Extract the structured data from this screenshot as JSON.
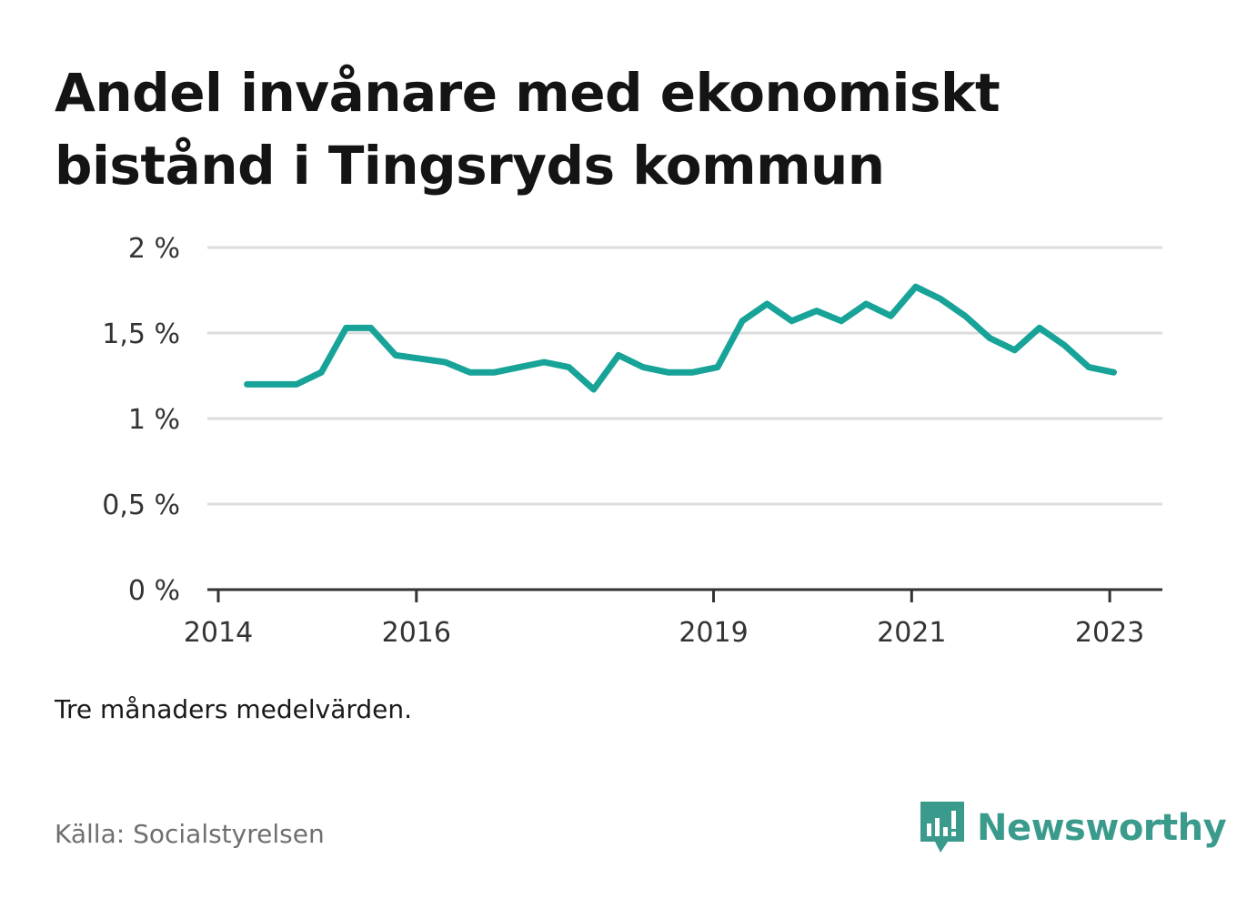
{
  "header": {
    "title": "Andel invånare med ekonomiskt bistånd i Tingsryds kommun"
  },
  "footer": {
    "note": "Tre månaders medelvärden.",
    "source": "Källa: Socialstyrelsen",
    "brand": "Newsworthy",
    "brand_color": "#3a9b8c"
  },
  "chart_data": {
    "type": "line",
    "title": "Andel invånare med ekonomiskt bistånd i Tingsryds kommun",
    "xlabel": "",
    "ylabel": "",
    "ylim": [
      0,
      2
    ],
    "xlim": [
      2014,
      2023.2
    ],
    "grid": true,
    "y_ticks": [
      {
        "value": 0,
        "label": "0 %"
      },
      {
        "value": 0.5,
        "label": "0,5 %"
      },
      {
        "value": 1,
        "label": "1 %"
      },
      {
        "value": 1.5,
        "label": "1,5 %"
      },
      {
        "value": 2,
        "label": "2 %"
      }
    ],
    "x_ticks": [
      {
        "value": 2014,
        "label": "2014"
      },
      {
        "value": 2016,
        "label": "2016"
      },
      {
        "value": 2019,
        "label": "2019"
      },
      {
        "value": 2021,
        "label": "2021"
      },
      {
        "value": 2023,
        "label": "2023"
      }
    ],
    "line_color": "#18a399",
    "series": [
      {
        "x": [
          2014.29,
          2014.54,
          2014.79,
          2015.04,
          2015.29,
          2015.54,
          2015.79,
          2016.04,
          2016.29,
          2016.54,
          2016.79,
          2017.04,
          2017.29,
          2017.54,
          2017.79,
          2018.04,
          2018.29,
          2018.54,
          2018.79,
          2019.04,
          2019.29,
          2019.54,
          2019.79,
          2020.04,
          2020.29,
          2020.54,
          2020.79,
          2021.04,
          2021.29,
          2021.54,
          2021.79,
          2022.04,
          2022.29,
          2022.54,
          2022.79,
          2023.04
        ],
        "values": [
          1.2,
          1.2,
          1.2,
          1.27,
          1.53,
          1.53,
          1.37,
          1.35,
          1.33,
          1.27,
          1.27,
          1.3,
          1.33,
          1.3,
          1.17,
          1.37,
          1.3,
          1.27,
          1.27,
          1.3,
          1.57,
          1.67,
          1.57,
          1.63,
          1.57,
          1.67,
          1.6,
          1.77,
          1.7,
          1.6,
          1.47,
          1.4,
          1.53,
          1.43,
          1.3,
          1.27
        ]
      }
    ]
  }
}
